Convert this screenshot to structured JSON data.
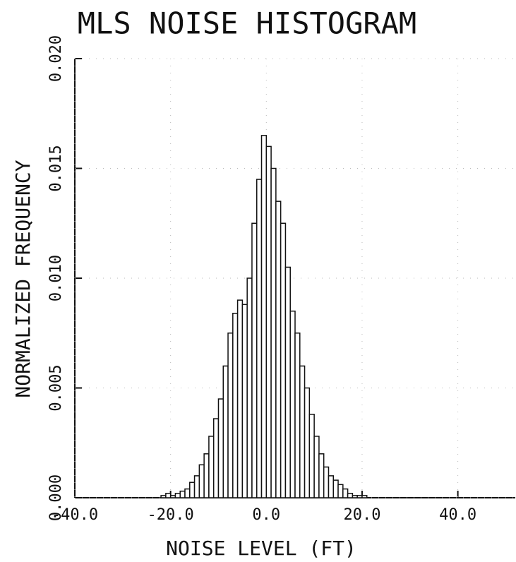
{
  "chart_data": {
    "type": "histogram",
    "title": "MLS NOISE HISTOGRAM",
    "x_label": "NOISE LEVEL (FT)",
    "y_label": "NORMALIZED FREQUENCY",
    "bins": [
      -22,
      -21,
      -20,
      -19,
      -18,
      -17,
      -16,
      -15,
      -14,
      -13,
      -12,
      -11,
      -10,
      -9,
      -8,
      -7,
      -6,
      -5,
      -4,
      -3,
      -2,
      -1,
      0,
      1,
      2,
      3,
      4,
      5,
      6,
      7,
      8,
      9,
      10,
      11,
      12,
      13,
      14,
      15,
      16,
      17,
      18,
      19,
      20,
      21
    ],
    "values": [
      0.0001,
      0.0002,
      0.0001,
      0.0002,
      0.0003,
      0.0004,
      0.0007,
      0.001,
      0.0015,
      0.002,
      0.0028,
      0.0036,
      0.0045,
      0.006,
      0.0075,
      0.0084,
      0.009,
      0.0088,
      0.01,
      0.0125,
      0.0145,
      0.0165,
      0.016,
      0.015,
      0.0135,
      0.0125,
      0.0105,
      0.0085,
      0.0075,
      0.006,
      0.005,
      0.0038,
      0.0028,
      0.002,
      0.0014,
      0.001,
      0.0008,
      0.0006,
      0.0004,
      0.0002,
      0.0001,
      0.0001,
      0.0001
    ],
    "color": "#111111",
    "xlim": [
      -40,
      52
    ],
    "ylim": [
      0,
      0.02
    ],
    "xticks": [
      {
        "value": -40,
        "label": "-40.0"
      },
      {
        "value": -20,
        "label": "-20.0"
      },
      {
        "value": 0,
        "label": "0.0"
      },
      {
        "value": 20,
        "label": "20.0"
      },
      {
        "value": 40,
        "label": "40.0"
      }
    ],
    "yticks": [
      {
        "value": 0,
        "label": "0.000"
      },
      0.005,
      {
        "value": 0.01,
        "label": "0.010"
      },
      0.015,
      {
        "value": 0.02,
        "label": "0.020"
      }
    ],
    "grid": true
  }
}
